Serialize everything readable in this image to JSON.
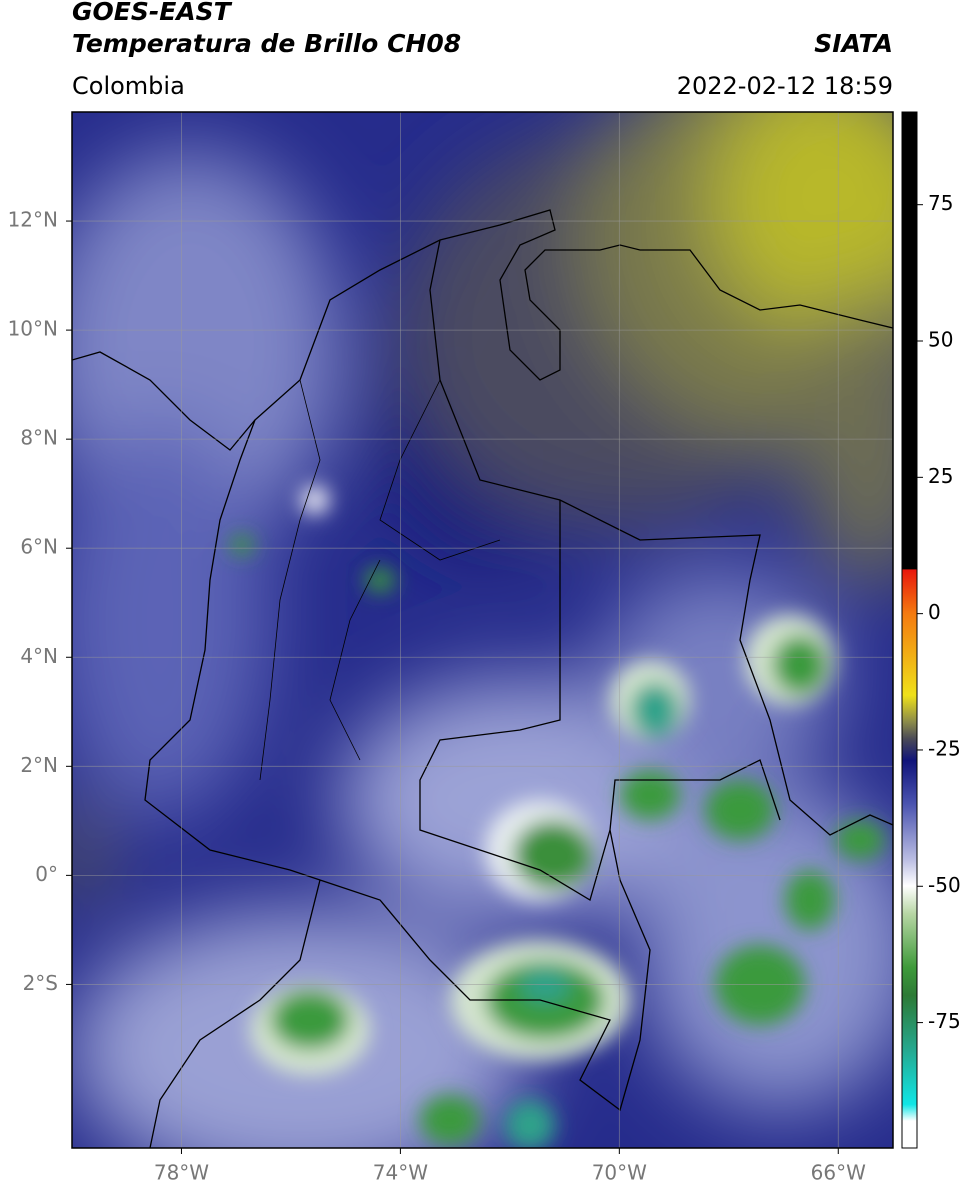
{
  "header": {
    "title": "GOES-EAST",
    "subtitle": "Temperatura de Brillo CH08",
    "source": "SIATA",
    "region": "Colombia",
    "datetime": "2022-02-12 18:59"
  },
  "map": {
    "xlim": [
      -80,
      -65
    ],
    "ylim": [
      -5,
      14
    ],
    "xticks": [
      {
        "value": -78,
        "label": "78°W"
      },
      {
        "value": -74,
        "label": "74°W"
      },
      {
        "value": -70,
        "label": "70°W"
      },
      {
        "value": -66,
        "label": "66°W"
      }
    ],
    "yticks": [
      {
        "value": 12,
        "label": "12°N"
      },
      {
        "value": 10,
        "label": "10°N"
      },
      {
        "value": 8,
        "label": "8°N"
      },
      {
        "value": 6,
        "label": "6°N"
      },
      {
        "value": 4,
        "label": "4°N"
      },
      {
        "value": 2,
        "label": "2°N"
      },
      {
        "value": 0,
        "label": "0°"
      },
      {
        "value": -2,
        "label": "2°S"
      }
    ]
  },
  "colorbar": {
    "lim": [
      -98,
      92
    ],
    "ticks": [
      75,
      50,
      25,
      0,
      -25,
      -50,
      -75
    ]
  }
}
